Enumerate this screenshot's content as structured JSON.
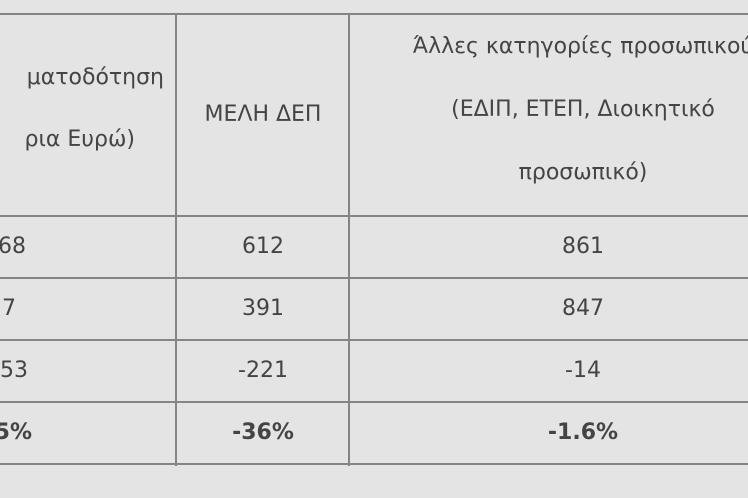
{
  "headers": {
    "col1_line1": "ματοδότηση",
    "col1_line2": "ρια Ευρώ)",
    "col2": "ΜΕΛΗ ΔΕΠ",
    "col3_line1": "Άλλες κατηγορίες προσωπικού",
    "col3_line2": "(ΕΔΙΠ, ΕΤΕΠ, Διοικητικό",
    "col3_line3": "προσωπικό)"
  },
  "rows": [
    {
      "col1": "68",
      "col2": "612",
      "col3": "861"
    },
    {
      "col1": "7",
      "col2": "391",
      "col3": "847"
    },
    {
      "col1": "53",
      "col2": "-221",
      "col3": "-14"
    },
    {
      "col1": "5%",
      "col2": "-36%",
      "col3": "-1.6%"
    }
  ]
}
